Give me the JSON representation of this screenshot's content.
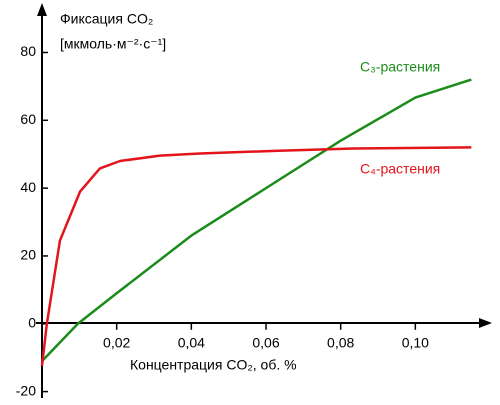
{
  "chart_data": {
    "type": "line",
    "title": "Фиксация CO₂",
    "subtitle": "[мкмоль·м⁻²·с⁻¹]",
    "x_label": "Концентрация CO₂, об. %",
    "xlim": [
      0,
      0.12
    ],
    "ylim": [
      -21,
      94
    ],
    "xticks": [
      {
        "value": 0.02,
        "label": "0,02"
      },
      {
        "value": 0.04,
        "label": "0,04"
      },
      {
        "value": 0.06,
        "label": "0,06"
      },
      {
        "value": 0.08,
        "label": "0,08"
      },
      {
        "value": 0.1,
        "label": "0,10"
      }
    ],
    "yticks": [
      -20,
      0,
      20,
      40,
      60,
      80
    ],
    "series": [
      {
        "name": "C₃-растения",
        "color": "#1b8c1b",
        "x": [
          0,
          0.0096,
          0.02,
          0.04,
          0.06,
          0.08,
          0.1,
          0.115
        ],
        "values": [
          -11,
          0,
          9,
          26,
          40,
          54,
          66.7,
          72
        ]
      },
      {
        "name": "C₄-растения",
        "color": "#e3141c",
        "x": [
          0,
          0.0013,
          0.0048,
          0.0102,
          0.0155,
          0.0209,
          0.0316,
          0.0423,
          0.0624,
          0.0833,
          0.115
        ],
        "values": [
          -12.4,
          0,
          24.5,
          39,
          45.8,
          48,
          49.6,
          50.2,
          51,
          51.7,
          52
        ]
      }
    ]
  }
}
